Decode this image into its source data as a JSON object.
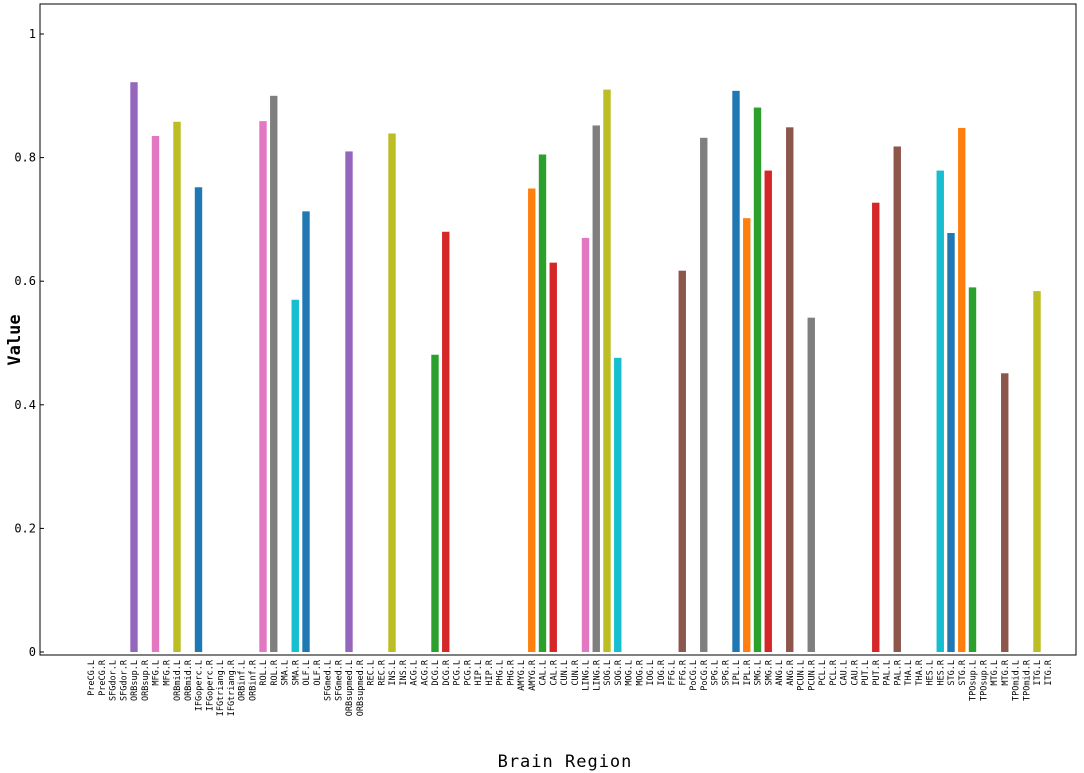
{
  "chart_data": {
    "type": "bar",
    "xlabel": "Brain Region",
    "ylabel": "Value",
    "ylim": [
      0,
      1
    ],
    "yticks": [
      {
        "value": 0,
        "label": "0"
      },
      {
        "value": 0.2,
        "label": "0.2"
      },
      {
        "value": 0.4,
        "label": "0.4"
      },
      {
        "value": 0.6,
        "label": "0.6"
      },
      {
        "value": 0.8,
        "label": "0.8"
      },
      {
        "value": 1,
        "label": "1"
      }
    ],
    "grid": false,
    "palette": [
      "#1f77b4",
      "#ff7f0e",
      "#2ca02c",
      "#d62728",
      "#9467bd",
      "#8c564b",
      "#e377c2",
      "#7f7f7f",
      "#bcbd22",
      "#17becf"
    ],
    "categories": [
      "PreCG.L",
      "PreCG.R",
      "SFGdor.L",
      "SFGdor.R",
      "ORBsup.L",
      "ORBsup.R",
      "MFG.L",
      "MFG.R",
      "ORBmid.L",
      "ORBmid.R",
      "IFGoperc.L",
      "IFGoperc.R",
      "IFGtriang.L",
      "IFGtriang.R",
      "ORBinf.L",
      "ORBinf.R",
      "ROL.L",
      "ROL.R",
      "SMA.L",
      "SMA.R",
      "OLF.L",
      "OLF.R",
      "SFGmed.L",
      "SFGmed.R",
      "ORBsupmed.L",
      "ORBsupmed.R",
      "REC.L",
      "REC.R",
      "INS.L",
      "INS.R",
      "ACG.L",
      "ACG.R",
      "DCG.L",
      "DCG.R",
      "PCG.L",
      "PCG.R",
      "HIP.L",
      "HIP.R",
      "PHG.L",
      "PHG.R",
      "AMYG.L",
      "AMYG.R",
      "CAL.L",
      "CAL.R",
      "CUN.L",
      "CUN.R",
      "LING.L",
      "LING.R",
      "SOG.L",
      "SOG.R",
      "MOG.L",
      "MOG.R",
      "IOG.L",
      "IOG.R",
      "FFG.L",
      "FFG.R",
      "PoCG.L",
      "PoCG.R",
      "SPG.L",
      "SPG.R",
      "IPL.L",
      "IPL.R",
      "SMG.L",
      "SMG.R",
      "ANG.L",
      "ANG.R",
      "PCUN.L",
      "PCUN.R",
      "PCL.L",
      "PCL.R",
      "CAU.L",
      "CAU.R",
      "PUT.L",
      "PUT.R",
      "PAL.L",
      "PAL.R",
      "THA.L",
      "THA.R",
      "HES.L",
      "HES.R",
      "STG.L",
      "STG.R",
      "TPOsup.L",
      "TPOsup.R",
      "MTG.L",
      "MTG.R",
      "TPOmid.L",
      "TPOmid.R",
      "ITG.L",
      "ITG.R"
    ],
    "values": [
      0,
      0,
      0,
      0,
      0.922,
      0,
      0.835,
      0,
      0.858,
      0,
      0.752,
      0,
      0,
      0,
      0,
      0,
      0.859,
      0.9,
      0,
      0.57,
      0.713,
      0,
      0,
      0,
      0.81,
      0,
      0,
      0,
      0.839,
      0,
      0,
      0,
      0.481,
      0.68,
      0,
      0,
      0,
      0,
      0,
      0,
      0,
      0.75,
      0.805,
      0.63,
      0,
      0,
      0.67,
      0.852,
      0.91,
      0.476,
      0,
      0,
      0,
      0,
      0,
      0.617,
      0,
      0.832,
      0,
      0,
      0.908,
      0.702,
      0.881,
      0.779,
      0,
      0.849,
      0,
      0.541,
      0,
      0,
      0,
      0,
      0,
      0.727,
      0,
      0.818,
      0,
      0,
      0,
      0.779,
      0.678,
      0.848,
      0.59,
      0,
      0,
      0.451,
      0,
      0,
      0.584,
      0
    ]
  }
}
